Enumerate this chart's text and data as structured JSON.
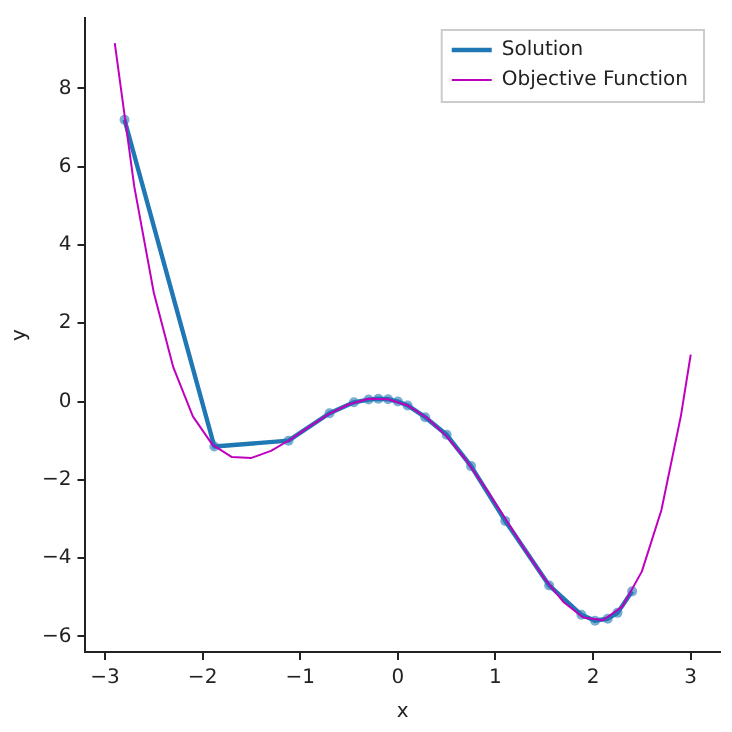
{
  "chart_data": {
    "type": "line",
    "xlabel": "x",
    "ylabel": "y",
    "xlim": [
      -3.2,
      3.3
    ],
    "ylim": [
      -6.4,
      9.8
    ],
    "xticks": [
      -3,
      -2,
      -1,
      0,
      1,
      2,
      3
    ],
    "yticks": [
      -6,
      -4,
      -2,
      0,
      2,
      4,
      6,
      8
    ],
    "grid": false,
    "legend": "top right",
    "line_style": "solid",
    "series": [
      {
        "name": "Solution",
        "color": "#1f77b4",
        "marker": "circle",
        "x": [
          -2.8,
          -1.88,
          -1.12,
          -0.7,
          -0.45,
          -0.3,
          -0.2,
          -0.1,
          0,
          0.1,
          0.28,
          0.5,
          0.75,
          1.1,
          1.55,
          1.88,
          2.02,
          2.15,
          2.25,
          2.4
        ],
        "values": [
          7.2,
          -1.15,
          -1.0,
          -0.3,
          -0.02,
          0.05,
          0.07,
          0.06,
          0.0,
          -0.1,
          -0.4,
          -0.85,
          -1.65,
          -3.05,
          -4.7,
          -5.45,
          -5.6,
          -5.55,
          -5.4,
          -4.85
        ]
      },
      {
        "name": "Objective Function",
        "color": "#bf00bf",
        "marker": "none",
        "x": [
          -2.9,
          -2.7,
          -2.5,
          -2.3,
          -2.1,
          -1.9,
          -1.7,
          -1.5,
          -1.3,
          -1.1,
          -0.9,
          -0.7,
          -0.5,
          -0.3,
          -0.1,
          0.1,
          0.3,
          0.5,
          0.7,
          0.9,
          1.1,
          1.3,
          1.5,
          1.7,
          1.9,
          2.1,
          2.3,
          2.5,
          2.7,
          2.9,
          3.0
        ],
        "values": [
          9.16,
          5.49,
          2.78,
          0.87,
          -0.38,
          -1.1,
          -1.42,
          -1.44,
          -1.26,
          -0.97,
          -0.63,
          -0.31,
          -0.07,
          0.07,
          0.06,
          -0.1,
          -0.42,
          -0.89,
          -1.5,
          -2.22,
          -2.99,
          -3.78,
          -4.52,
          -5.13,
          -5.52,
          -5.59,
          -5.24,
          -4.34,
          -2.77,
          -0.36,
          1.2
        ]
      }
    ]
  }
}
